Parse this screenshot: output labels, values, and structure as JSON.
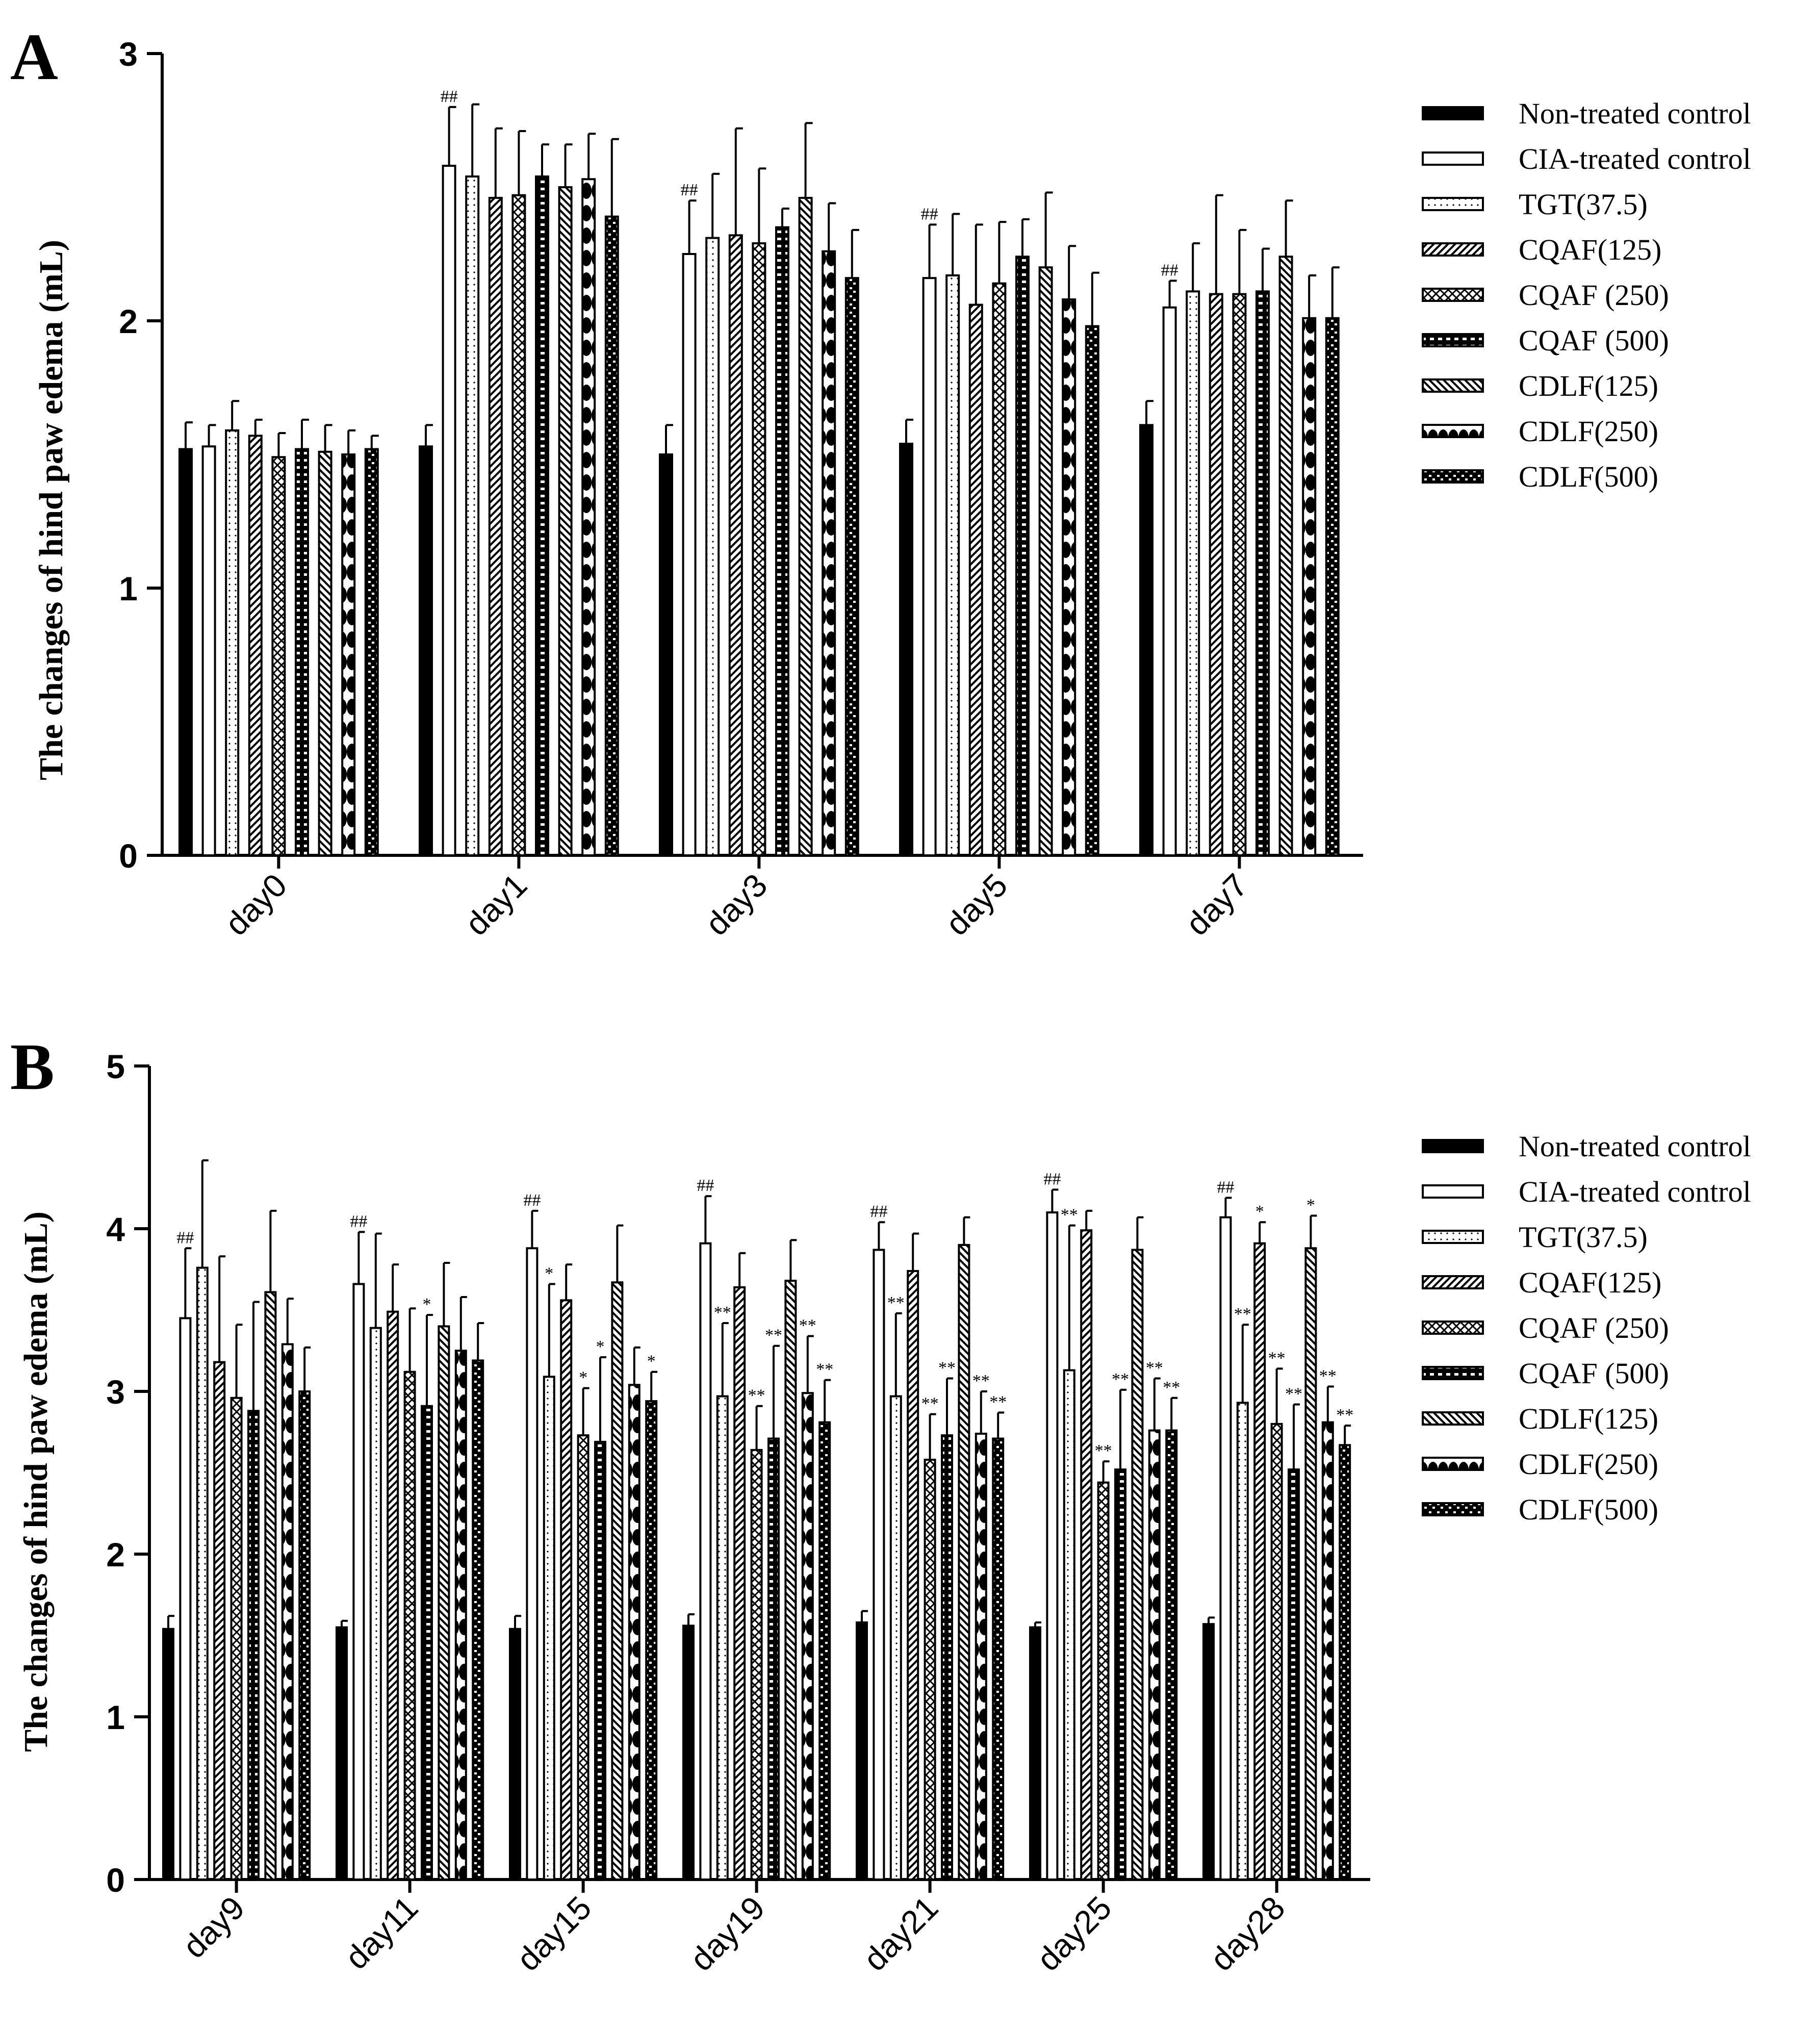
{
  "series_legend": [
    {
      "name": "Non-treated control",
      "pattern": "solid"
    },
    {
      "name": "CIA-treated control",
      "pattern": "blank"
    },
    {
      "name": "TGT(37.5)",
      "pattern": "dots"
    },
    {
      "name": "CQAF(125)",
      "pattern": "diag"
    },
    {
      "name": "CQAF (250)",
      "pattern": "zigzag"
    },
    {
      "name": "CQAF (500)",
      "pattern": "dash"
    },
    {
      "name": "CDLF(125)",
      "pattern": "backdiag"
    },
    {
      "name": "CDLF(250)",
      "pattern": "blobs"
    },
    {
      "name": "CDLF(500)",
      "pattern": "bricks"
    }
  ],
  "chart_data": [
    {
      "panel": "A",
      "type": "bar",
      "ylabel": "The changes of hind paw edema (mL)",
      "ylim": [
        0,
        3
      ],
      "yticks": [
        "0",
        "1",
        "2",
        "3"
      ],
      "categories": [
        "day0",
        "day1",
        "day3",
        "day5",
        "day7"
      ],
      "series": [
        {
          "name": "Non-treated control",
          "values": [
            1.52,
            1.53,
            1.5,
            1.54,
            1.61
          ],
          "errors": [
            0.1,
            0.08,
            0.11,
            0.09,
            0.09
          ]
        },
        {
          "name": "CIA-treated control",
          "values": [
            1.53,
            2.58,
            2.25,
            2.16,
            2.05
          ],
          "errors": [
            0.08,
            0.22,
            0.2,
            0.2,
            0.1
          ],
          "annotations": [
            "",
            "##",
            "##",
            "##",
            "##"
          ]
        },
        {
          "name": "TGT(37.5)",
          "values": [
            1.59,
            2.54,
            2.31,
            2.17,
            2.11
          ],
          "errors": [
            0.11,
            0.27,
            0.24,
            0.23,
            0.18
          ]
        },
        {
          "name": "CQAF(125)",
          "values": [
            1.57,
            2.46,
            2.32,
            2.06,
            2.1
          ],
          "errors": [
            0.06,
            0.26,
            0.4,
            0.3,
            0.37
          ]
        },
        {
          "name": "CQAF (250)",
          "values": [
            1.49,
            2.47,
            2.29,
            2.14,
            2.1
          ],
          "errors": [
            0.09,
            0.24,
            0.28,
            0.23,
            0.24
          ]
        },
        {
          "name": "CQAF (500)",
          "values": [
            1.52,
            2.54,
            2.35,
            2.24,
            2.11
          ],
          "errors": [
            0.11,
            0.12,
            0.07,
            0.14,
            0.16
          ]
        },
        {
          "name": "CDLF(125)",
          "values": [
            1.51,
            2.5,
            2.46,
            2.2,
            2.24
          ],
          "errors": [
            0.1,
            0.16,
            0.28,
            0.28,
            0.21
          ]
        },
        {
          "name": "CDLF(250)",
          "values": [
            1.5,
            2.53,
            2.26,
            2.08,
            2.01
          ],
          "errors": [
            0.09,
            0.17,
            0.18,
            0.2,
            0.16
          ]
        },
        {
          "name": "CDLF(500)",
          "values": [
            1.52,
            2.39,
            2.16,
            1.98,
            2.01
          ],
          "errors": [
            0.05,
            0.29,
            0.18,
            0.2,
            0.19
          ]
        }
      ]
    },
    {
      "panel": "B",
      "type": "bar",
      "ylabel": "The changes of hind paw edema (mL)",
      "ylim": [
        0,
        5
      ],
      "yticks": [
        "0",
        "1",
        "2",
        "3",
        "4",
        "5"
      ],
      "categories": [
        "day9",
        "day11",
        "day15",
        "day19",
        "day21",
        "day25",
        "day28"
      ],
      "series": [
        {
          "name": "Non-treated control",
          "values": [
            1.54,
            1.55,
            1.54,
            1.56,
            1.58,
            1.55,
            1.57
          ],
          "errors": [
            0.08,
            0.04,
            0.08,
            0.07,
            0.07,
            0.03,
            0.04
          ]
        },
        {
          "name": "CIA-treated control",
          "values": [
            3.45,
            3.66,
            3.88,
            3.91,
            3.87,
            4.1,
            4.07
          ],
          "errors": [
            0.43,
            0.32,
            0.23,
            0.29,
            0.17,
            0.14,
            0.12
          ],
          "annotations": [
            "##",
            "##",
            "##",
            "##",
            "##",
            "##",
            "##"
          ]
        },
        {
          "name": "TGT(37.5)",
          "values": [
            3.76,
            3.39,
            3.09,
            2.97,
            2.97,
            3.13,
            2.93
          ],
          "errors": [
            0.66,
            0.58,
            0.57,
            0.45,
            0.51,
            0.89,
            0.48
          ],
          "annotations": [
            "",
            "",
            "*",
            "**",
            "**",
            "**",
            "**"
          ]
        },
        {
          "name": "CQAF(125)",
          "values": [
            3.18,
            3.49,
            3.56,
            3.64,
            3.74,
            3.99,
            3.91
          ],
          "errors": [
            0.65,
            0.29,
            0.22,
            0.21,
            0.23,
            0.12,
            0.13
          ],
          "annotations": [
            "",
            "",
            "",
            "",
            "",
            "",
            "*"
          ]
        },
        {
          "name": "CQAF (250)",
          "values": [
            2.96,
            3.12,
            2.73,
            2.64,
            2.58,
            2.44,
            2.8
          ],
          "errors": [
            0.45,
            0.39,
            0.29,
            0.27,
            0.28,
            0.13,
            0.34
          ],
          "annotations": [
            "",
            "",
            "*",
            "**",
            "**",
            "**",
            "**"
          ]
        },
        {
          "name": "CQAF (500)",
          "values": [
            2.88,
            2.91,
            2.69,
            2.71,
            2.73,
            2.52,
            2.52
          ],
          "errors": [
            0.67,
            0.56,
            0.52,
            0.57,
            0.35,
            0.49,
            0.4
          ],
          "annotations": [
            "",
            "*",
            "*",
            "**",
            "**",
            "**",
            "**"
          ]
        },
        {
          "name": "CDLF(125)",
          "values": [
            3.61,
            3.4,
            3.67,
            3.68,
            3.9,
            3.87,
            3.88
          ],
          "errors": [
            0.5,
            0.39,
            0.35,
            0.25,
            0.17,
            0.2,
            0.2
          ],
          "annotations": [
            "",
            "",
            "",
            "",
            "",
            "",
            "*"
          ]
        },
        {
          "name": "CDLF(250)",
          "values": [
            3.29,
            3.25,
            3.04,
            2.99,
            2.74,
            2.76,
            2.81
          ],
          "errors": [
            0.28,
            0.33,
            0.23,
            0.35,
            0.26,
            0.32,
            0.22
          ],
          "annotations": [
            "",
            "",
            "",
            "**",
            "**",
            "**",
            "**"
          ]
        },
        {
          "name": "CDLF(500)",
          "values": [
            3.0,
            3.19,
            2.94,
            2.81,
            2.71,
            2.76,
            2.67
          ],
          "errors": [
            0.27,
            0.23,
            0.18,
            0.26,
            0.16,
            0.2,
            0.12
          ],
          "annotations": [
            "",
            "",
            "*",
            "**",
            "**",
            "**",
            "**"
          ]
        }
      ]
    }
  ]
}
